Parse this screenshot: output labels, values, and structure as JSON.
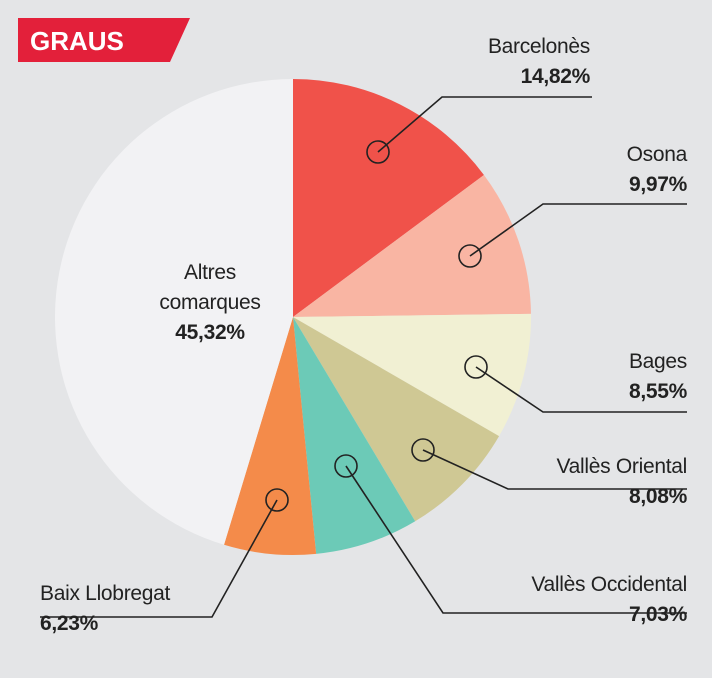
{
  "chart_data": {
    "type": "pie",
    "title": "GRAUS",
    "categories": [
      "Barcelonès",
      "Osona",
      "Bages",
      "Vallès Oriental",
      "Vallès Occidental",
      "Baix Llobregat",
      "Altres comarques"
    ],
    "values": [
      14.82,
      9.97,
      8.55,
      8.08,
      7.03,
      6.23,
      45.32
    ],
    "value_labels": [
      "14,82%",
      "9,97%",
      "8,55%",
      "8,08%",
      "7,03%",
      "6,23%",
      "45,32%"
    ],
    "colors": [
      "#f0524a",
      "#f9b5a3",
      "#f1f0d3",
      "#cfc894",
      "#6ccab7",
      "#f48b4a",
      "#f2f2f4"
    ]
  }
}
